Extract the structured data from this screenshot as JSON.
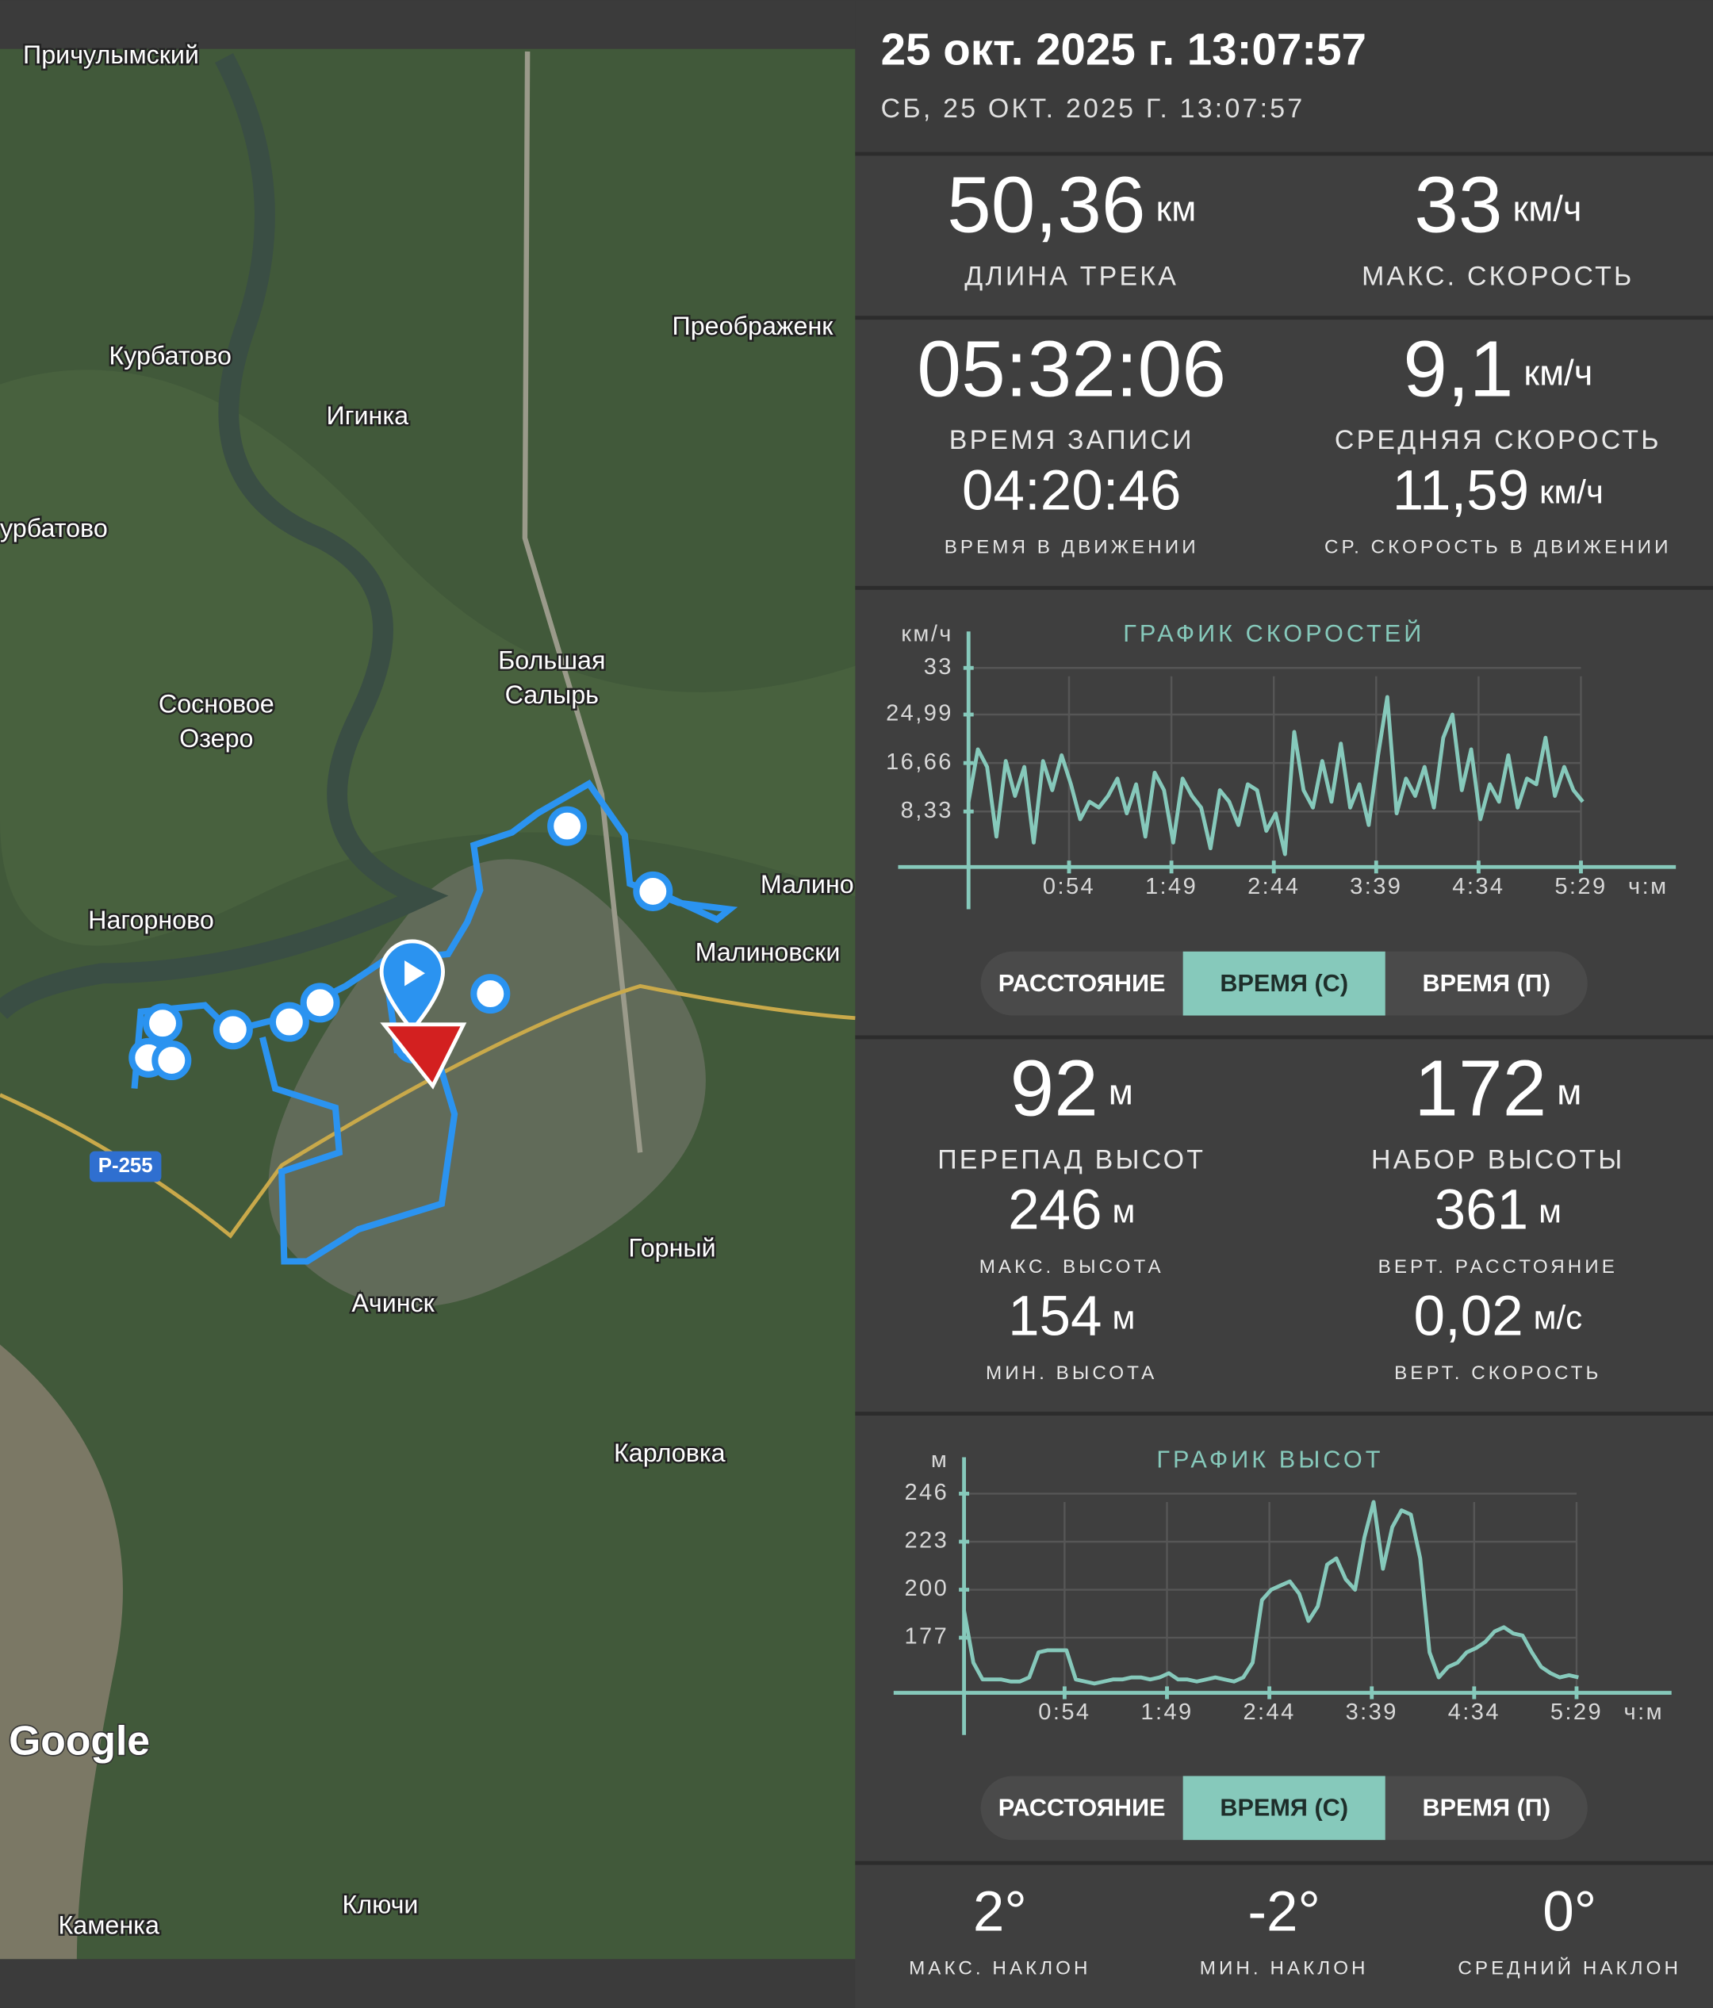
{
  "header": {
    "title": "25 окт. 2025 г. 13:07:57",
    "subtitle": "СБ, 25 ОКТ. 2025 Г. 13:07:57"
  },
  "map": {
    "labels": [
      "Причулымский",
      "Курбатово",
      "Игинка",
      "урбатово",
      "Преображенк",
      "Большая",
      "Салырь",
      "Сосновое",
      "Озеро",
      "Нагорново",
      "Малино",
      "Малиновски",
      "Горный",
      "Ачинск",
      "Карловка",
      "Ключи",
      "Каменка"
    ],
    "road": "Р-255",
    "logo": "Google"
  },
  "stats": [
    {
      "value": "50,36",
      "unit": "км",
      "label": "ДЛИНА ТРЕКА"
    },
    {
      "value": "33",
      "unit": "км/ч",
      "label": "МАКС. СКОРОСТЬ"
    },
    {
      "value": "05:32:06",
      "label": "ВРЕМЯ ЗАПИСИ"
    },
    {
      "value": "9,1",
      "unit": "км/ч",
      "label": "СРЕДНЯЯ СКОРОСТЬ"
    },
    {
      "value": "04:20:46",
      "label": "ВРЕМЯ В ДВИЖЕНИИ"
    },
    {
      "value": "11,59",
      "unit": "км/ч",
      "label": "СР. СКОРОСТЬ В ДВИЖЕНИИ"
    }
  ],
  "speed_chart": {
    "type": "line",
    "title": "ГРАФИК СКОРОСТЕЙ",
    "y_unit": "км/ч",
    "x_unit": "ч:м",
    "color": "#86c9bb",
    "xlim": [
      0,
      380
    ],
    "ylim": [
      0,
      33
    ],
    "xticks": [
      {
        "value": 54,
        "label": "0:54"
      },
      {
        "value": 109,
        "label": "1:49"
      },
      {
        "value": 164,
        "label": "2:44"
      },
      {
        "value": 219,
        "label": "3:39"
      },
      {
        "value": 274,
        "label": "4:34"
      },
      {
        "value": 329,
        "label": "5:29"
      }
    ],
    "yticks": [
      {
        "value": 8.33,
        "label": "8,33"
      },
      {
        "value": 16.66,
        "label": "16,66"
      },
      {
        "value": 24.99,
        "label": "24,99"
      },
      33
    ],
    "x": [
      0,
      5,
      10,
      15,
      20,
      25,
      30,
      35,
      40,
      45,
      50,
      55,
      60,
      65,
      70,
      75,
      80,
      85,
      90,
      95,
      100,
      105,
      110,
      115,
      120,
      125,
      130,
      135,
      140,
      145,
      150,
      155,
      160,
      165,
      170,
      175,
      180,
      185,
      190,
      195,
      200,
      205,
      210,
      215,
      220,
      225,
      230,
      235,
      240,
      245,
      250,
      255,
      260,
      265,
      270,
      275,
      280,
      285,
      290,
      295,
      300,
      305,
      310,
      315,
      320,
      325,
      330
    ],
    "values": [
      10,
      19,
      16,
      4,
      17,
      11,
      16,
      3,
      17,
      12,
      18,
      13,
      7,
      10,
      9,
      11,
      14,
      8,
      13,
      4,
      15,
      12,
      3,
      14,
      11,
      9,
      2,
      12,
      10,
      6,
      13,
      12,
      5,
      8,
      1,
      22,
      12,
      9,
      17,
      10,
      20,
      9,
      13,
      6,
      18,
      28,
      8,
      14,
      11,
      16,
      9,
      21,
      25,
      12,
      19,
      7,
      13,
      10,
      18,
      9,
      14,
      13,
      21,
      11,
      16,
      12,
      10
    ],
    "tabs": [
      "РАССТОЯНИЕ",
      "ВРЕМЯ (С)",
      "ВРЕМЯ (П)"
    ],
    "active_tab": 1
  },
  "elevation_stats": [
    {
      "value": "92",
      "unit": "м",
      "label": "ПЕРЕПАД ВЫСОТ"
    },
    {
      "value": "172",
      "unit": "м",
      "label": "НАБОР ВЫСОТЫ"
    },
    {
      "value": "246",
      "unit": "м",
      "label": "МАКС. ВЫСОТА"
    },
    {
      "value": "361",
      "unit": "м",
      "label": "ВЕРТ. РАССТОЯНИЕ"
    },
    {
      "value": "154",
      "unit": "м",
      "label": "МИН. ВЫСОТА"
    },
    {
      "value": "0,02",
      "unit": "м/с",
      "label": "ВЕРТ. СКОРОСТЬ"
    }
  ],
  "elevation_chart": {
    "type": "line",
    "title": "ГРАФИК ВЫСОТ",
    "y_unit": "м",
    "x_unit": "ч:м",
    "color": "#86c9bb",
    "xlim": [
      0,
      380
    ],
    "ylim": [
      150,
      265
    ],
    "xticks": [
      {
        "value": 54,
        "label": "0:54"
      },
      {
        "value": 109,
        "label": "1:49"
      },
      {
        "value": 164,
        "label": "2:44"
      },
      {
        "value": 219,
        "label": "3:39"
      },
      {
        "value": 274,
        "label": "4:34"
      },
      {
        "value": 329,
        "label": "5:29"
      }
    ],
    "yticks": [
      177,
      200,
      223,
      246
    ],
    "x": [
      0,
      5,
      10,
      15,
      20,
      25,
      30,
      35,
      40,
      45,
      50,
      55,
      60,
      65,
      70,
      75,
      80,
      85,
      90,
      95,
      100,
      105,
      110,
      115,
      120,
      125,
      130,
      135,
      140,
      145,
      150,
      155,
      160,
      165,
      170,
      175,
      180,
      185,
      190,
      195,
      200,
      205,
      210,
      215,
      220,
      225,
      230,
      235,
      240,
      245,
      250,
      255,
      260,
      265,
      270,
      275,
      280,
      285,
      290,
      295,
      300,
      305,
      310,
      315,
      320,
      325,
      330
    ],
    "values": [
      190,
      165,
      157,
      157,
      157,
      156,
      156,
      158,
      170,
      171,
      171,
      171,
      157,
      156,
      155,
      156,
      157,
      157,
      158,
      158,
      157,
      158,
      160,
      157,
      157,
      156,
      157,
      158,
      157,
      156,
      158,
      165,
      195,
      200,
      202,
      204,
      198,
      185,
      192,
      212,
      215,
      205,
      200,
      225,
      242,
      210,
      230,
      238,
      236,
      215,
      170,
      158,
      163,
      165,
      170,
      172,
      175,
      180,
      182,
      179,
      178,
      170,
      163,
      160,
      158,
      159,
      158
    ],
    "tabs": [
      "РАССТОЯНИЕ",
      "ВРЕМЯ (С)",
      "ВРЕМЯ (П)"
    ],
    "active_tab": 1
  },
  "slope_stats": [
    {
      "value": "2°",
      "label": "МАКС. НАКЛОН"
    },
    {
      "value": "-2°",
      "label": "МИН. НАКЛОН"
    },
    {
      "value": "0°",
      "label": "СРЕДНИЙ НАКЛОН"
    }
  ]
}
